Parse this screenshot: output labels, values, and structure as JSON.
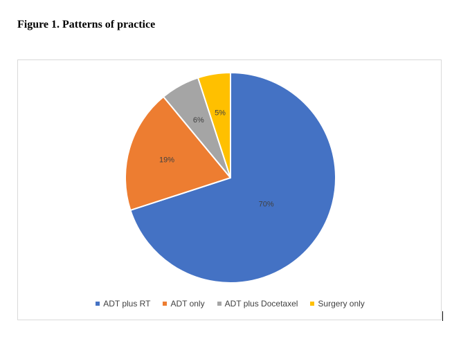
{
  "figure": {
    "title": "Figure 1. Patterns of practice"
  },
  "chart_data": {
    "type": "pie",
    "title": "",
    "legend_position": "bottom",
    "slices": [
      {
        "name": "ADT plus RT",
        "value": 70,
        "label": "70%",
        "color": "#4472C4"
      },
      {
        "name": "ADT only",
        "value": 19,
        "label": "19%",
        "color": "#ED7D31"
      },
      {
        "name": "ADT plus Docetaxel",
        "value": 6,
        "label": "6%",
        "color": "#A5A5A5"
      },
      {
        "name": "Surgery only",
        "value": 5,
        "label": "5%",
        "color": "#FFC000"
      }
    ]
  }
}
